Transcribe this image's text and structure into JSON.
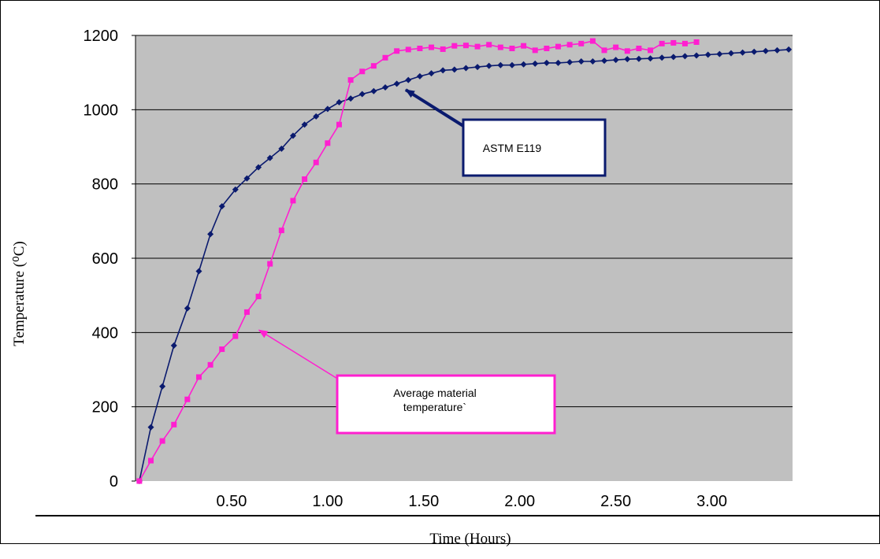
{
  "chart_data": {
    "type": "line",
    "title": "",
    "xlabel": "Time (Hours)",
    "ylabel": "Temperature (⁰C)",
    "xlim": [
      0,
      3.42
    ],
    "ylim": [
      0,
      1200
    ],
    "grid": true,
    "x_ticks": [
      {
        "value": 0.5,
        "label": "0.50"
      },
      {
        "value": 1.0,
        "label": "1.00"
      },
      {
        "value": 1.5,
        "label": "1.50"
      },
      {
        "value": 2.0,
        "label": "2.00"
      },
      {
        "value": 2.5,
        "label": "2.50"
      },
      {
        "value": 3.0,
        "label": "3.00"
      }
    ],
    "y_ticks": [
      {
        "value": 0,
        "label": "0"
      },
      {
        "value": 200,
        "label": "200"
      },
      {
        "value": 400,
        "label": "400"
      },
      {
        "value": 600,
        "label": "600"
      },
      {
        "value": 800,
        "label": "800"
      },
      {
        "value": 1000,
        "label": "1000"
      },
      {
        "value": 1200,
        "label": "1200"
      }
    ],
    "colors": {
      "plot_background": "#c0c0c0",
      "gridline": "#000000",
      "astm_series": "#0a1a6e",
      "material_series": "#ff1fd0"
    },
    "series": [
      {
        "id": "astm",
        "marker": "diamond",
        "x": [
          0.02,
          0.08,
          0.14,
          0.2,
          0.27,
          0.33,
          0.39,
          0.45,
          0.52,
          0.58,
          0.64,
          0.7,
          0.76,
          0.82,
          0.88,
          0.94,
          1.0,
          1.06,
          1.12,
          1.18,
          1.24,
          1.3,
          1.36,
          1.42,
          1.48,
          1.54,
          1.6,
          1.66,
          1.72,
          1.78,
          1.84,
          1.9,
          1.96,
          2.02,
          2.08,
          2.14,
          2.2,
          2.26,
          2.32,
          2.38,
          2.44,
          2.5,
          2.56,
          2.62,
          2.68,
          2.74,
          2.8,
          2.86,
          2.92,
          2.98,
          3.04,
          3.1,
          3.16,
          3.22,
          3.28,
          3.34,
          3.4
        ],
        "y": [
          0,
          145,
          255,
          365,
          465,
          565,
          665,
          740,
          785,
          815,
          845,
          870,
          895,
          930,
          960,
          982,
          1002,
          1020,
          1030,
          1042,
          1050,
          1060,
          1070,
          1080,
          1090,
          1098,
          1106,
          1108,
          1112,
          1115,
          1118,
          1120,
          1120,
          1122,
          1124,
          1126,
          1126,
          1128,
          1130,
          1130,
          1132,
          1134,
          1136,
          1137,
          1138,
          1140,
          1142,
          1144,
          1146,
          1148,
          1150,
          1152,
          1154,
          1156,
          1158,
          1160,
          1162
        ]
      },
      {
        "id": "material",
        "marker": "square",
        "x": [
          0.02,
          0.08,
          0.14,
          0.2,
          0.27,
          0.33,
          0.39,
          0.45,
          0.52,
          0.58,
          0.64,
          0.7,
          0.76,
          0.82,
          0.88,
          0.94,
          1.0,
          1.06,
          1.12,
          1.18,
          1.24,
          1.3,
          1.36,
          1.42,
          1.48,
          1.54,
          1.6,
          1.66,
          1.72,
          1.78,
          1.84,
          1.9,
          1.96,
          2.02,
          2.08,
          2.14,
          2.2,
          2.26,
          2.32,
          2.38,
          2.44,
          2.5,
          2.56,
          2.62,
          2.68,
          2.74,
          2.8,
          2.86,
          2.92
        ],
        "y": [
          0,
          55,
          108,
          152,
          220,
          280,
          313,
          355,
          390,
          455,
          497,
          585,
          675,
          755,
          813,
          858,
          910,
          960,
          1080,
          1103,
          1118,
          1140,
          1158,
          1162,
          1165,
          1168,
          1163,
          1172,
          1173,
          1170,
          1175,
          1168,
          1165,
          1172,
          1160,
          1165,
          1170,
          1175,
          1178,
          1185,
          1160,
          1168,
          1158,
          1165,
          1160,
          1178,
          1180,
          1178,
          1182
        ]
      }
    ],
    "annotations": [
      {
        "id": "astm-callout",
        "text_lines": [
          "ASTM E119"
        ],
        "target": {
          "x": 1.39,
          "y": 1060
        },
        "color": "#0a1a6e"
      },
      {
        "id": "material-callout",
        "text_lines": [
          "Average material",
          "temperature`"
        ],
        "target": {
          "x": 0.63,
          "y": 413
        },
        "color": "#ff1fd0"
      }
    ]
  }
}
